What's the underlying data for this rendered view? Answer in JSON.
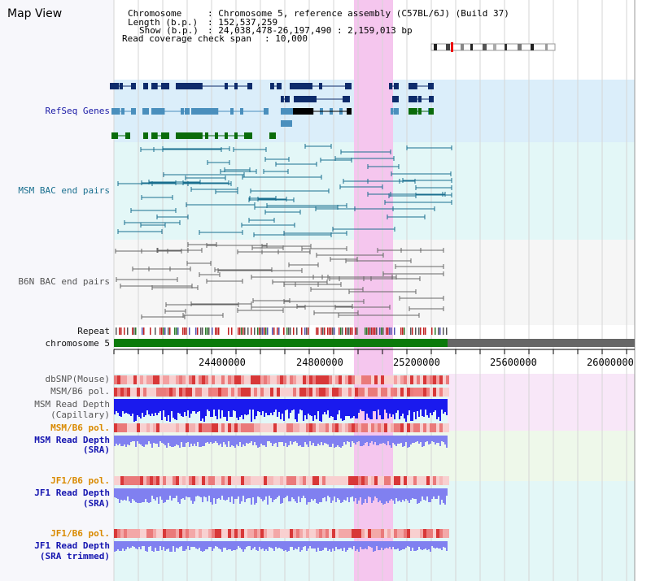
{
  "view_title": "Map View",
  "header": {
    "chromosome_key": "Chromosome",
    "chromosome_val": ": Chromosome 5, reference assembly (C57BL/6J) (Build 37)",
    "length_key": "Length (b.p.)",
    "length_val": ": 152,537,259",
    "show_key": "Show (b.p.)",
    "show_val": ": 24,038,478-26,197,490 : 2,159,013 bp",
    "coverage_key": "Read coverage check span",
    "coverage_val": ": 10,000"
  },
  "tracks": {
    "refseq": "RefSeq Genes",
    "msm_bac": "MSM BAC end pairs",
    "b6n_bac": "B6N BAC end pairs",
    "repeat": "Repeat",
    "chromosome": "chromosome 5",
    "dbsnp": "dbSNP(Mouse)",
    "msm_b6_pol_1": "MSM/B6 pol.",
    "msm_read_depth_cap": "MSM Read Depth",
    "msm_read_depth_cap_sub": "(Capillary)",
    "msm_b6_pol_2": "MSM/B6 pol.",
    "msm_read_depth_sra": "MSM Read Depth",
    "msm_read_depth_sra_sub": "(SRA)",
    "jf1_b6_pol_1": "JF1/B6 pol.",
    "jf1_read_depth_sra": "JF1 Read Depth",
    "jf1_read_depth_sra_sub": "(SRA)",
    "jf1_b6_pol_2": "JF1/B6 pol.",
    "jf1_read_depth_trim": "JF1 Read Depth",
    "jf1_read_depth_trim_sub": "(SRA trimmed)"
  },
  "axis_ticks": [
    "24400000",
    "24800000",
    "25200000",
    "25600000",
    "26000000"
  ],
  "colors": {
    "refseq_dark": "#0d2b6b",
    "refseq_light": "#4a8fbd",
    "refseq_green": "#0a6b0a",
    "bac_teal": "#1a6f8f",
    "bac_gray": "#666666",
    "highlight": "#f5c6ee",
    "chrom_green": "#0b7a0b",
    "chrom_gray": "#666666",
    "depth_blue": "#1a1aee",
    "depth_lavender": "#8080f0"
  }
}
